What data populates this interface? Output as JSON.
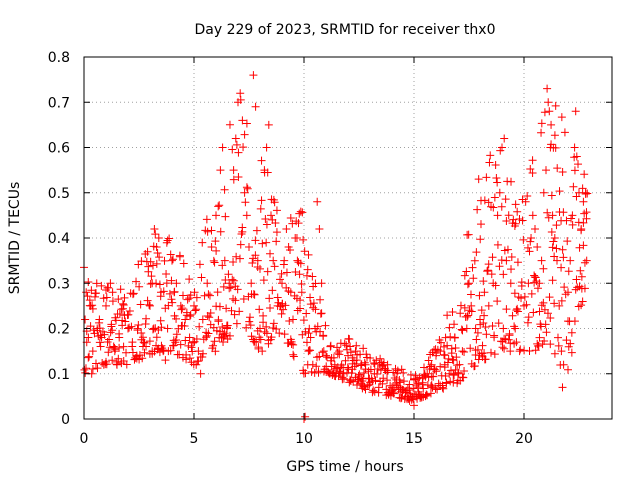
{
  "chart_data": {
    "type": "scatter",
    "title": "Day 229 of 2023, SRMTID for receiver thx0",
    "xlabel": "GPS time / hours",
    "ylabel": "SRMTID / TECUs",
    "xlim": [
      0,
      24
    ],
    "ylim": [
      0,
      0.8
    ],
    "xticks": [
      0,
      5,
      10,
      15,
      20
    ],
    "xtick_labels": [
      "0",
      "5",
      "10",
      "15",
      "20"
    ],
    "yticks": [
      0,
      0.1,
      0.2,
      0.3,
      0.4,
      0.5,
      0.6,
      0.7,
      0.8
    ],
    "ytick_labels": [
      "0",
      "0.1",
      "0.2",
      "0.3",
      "0.4",
      "0.5",
      "0.6",
      "0.7",
      "0.8"
    ],
    "grid": true,
    "marker": "plus",
    "series_color": "#ff0000",
    "envelope": {
      "description": "approximate lower/upper band of the dense point cloud (data units)",
      "hours": [
        0,
        1,
        2,
        3,
        4,
        5,
        6,
        7,
        8,
        9,
        10,
        11,
        12,
        13,
        14,
        15,
        16,
        17,
        18,
        19,
        20,
        21,
        22,
        23
      ],
      "lower": [
        0.1,
        0.12,
        0.12,
        0.14,
        0.15,
        0.12,
        0.15,
        0.2,
        0.15,
        0.18,
        0.1,
        0.1,
        0.08,
        0.06,
        0.05,
        0.04,
        0.06,
        0.08,
        0.12,
        0.15,
        0.15,
        0.15,
        0.1,
        0.34
      ],
      "upper": [
        0.34,
        0.3,
        0.28,
        0.43,
        0.4,
        0.3,
        0.55,
        0.72,
        0.62,
        0.45,
        0.48,
        0.2,
        0.18,
        0.15,
        0.12,
        0.1,
        0.16,
        0.32,
        0.55,
        0.62,
        0.5,
        0.73,
        0.68,
        0.5
      ]
    },
    "points": [
      [
        0.0,
        0.335
      ],
      [
        0.05,
        0.22
      ],
      [
        0.1,
        0.28
      ],
      [
        0.2,
        0.18
      ],
      [
        0.3,
        0.25
      ],
      [
        0.35,
        0.1
      ],
      [
        0.4,
        0.15
      ],
      [
        0.5,
        0.27
      ],
      [
        0.6,
        0.2
      ],
      [
        0.7,
        0.22
      ],
      [
        0.8,
        0.18
      ],
      [
        0.9,
        0.12
      ],
      [
        1.0,
        0.25
      ],
      [
        1.1,
        0.29
      ],
      [
        1.2,
        0.3
      ],
      [
        1.3,
        0.28
      ],
      [
        1.4,
        0.15
      ],
      [
        1.5,
        0.12
      ],
      [
        1.6,
        0.18
      ],
      [
        1.8,
        0.16
      ],
      [
        2.0,
        0.2
      ],
      [
        2.2,
        0.17
      ],
      [
        2.4,
        0.14
      ],
      [
        2.6,
        0.19
      ],
      [
        2.8,
        0.21
      ],
      [
        3.0,
        0.25
      ],
      [
        3.1,
        0.3
      ],
      [
        3.2,
        0.42
      ],
      [
        3.3,
        0.38
      ],
      [
        3.4,
        0.4
      ],
      [
        3.5,
        0.28
      ],
      [
        3.6,
        0.15
      ],
      [
        3.7,
        0.13
      ],
      [
        3.8,
        0.2
      ],
      [
        4.0,
        0.35
      ],
      [
        4.1,
        0.28
      ],
      [
        4.2,
        0.3
      ],
      [
        4.4,
        0.25
      ],
      [
        4.6,
        0.22
      ],
      [
        4.8,
        0.18
      ],
      [
        5.0,
        0.25
      ],
      [
        5.1,
        0.12
      ],
      [
        5.2,
        0.15
      ],
      [
        5.3,
        0.1
      ],
      [
        5.4,
        0.22
      ],
      [
        5.6,
        0.3
      ],
      [
        5.8,
        0.38
      ],
      [
        6.0,
        0.45
      ],
      [
        6.1,
        0.47
      ],
      [
        6.2,
        0.55
      ],
      [
        6.3,
        0.6
      ],
      [
        6.4,
        0.35
      ],
      [
        6.5,
        0.2
      ],
      [
        6.6,
        0.3
      ],
      [
        6.8,
        0.55
      ],
      [
        6.9,
        0.62
      ],
      [
        7.0,
        0.7
      ],
      [
        7.1,
        0.72
      ],
      [
        7.2,
        0.66
      ],
      [
        7.3,
        0.5
      ],
      [
        7.4,
        0.45
      ],
      [
        7.5,
        0.38
      ],
      [
        7.6,
        0.3
      ],
      [
        7.7,
        0.76
      ],
      [
        7.8,
        0.69
      ],
      [
        7.9,
        0.35
      ],
      [
        8.0,
        0.2
      ],
      [
        8.1,
        0.15
      ],
      [
        8.2,
        0.55
      ],
      [
        8.3,
        0.6
      ],
      [
        8.4,
        0.65
      ],
      [
        8.5,
        0.45
      ],
      [
        8.6,
        0.35
      ],
      [
        8.8,
        0.25
      ],
      [
        9.0,
        0.3
      ],
      [
        9.1,
        0.35
      ],
      [
        9.2,
        0.42
      ],
      [
        9.3,
        0.38
      ],
      [
        9.4,
        0.28
      ],
      [
        9.5,
        0.22
      ],
      [
        9.6,
        0.4
      ],
      [
        9.7,
        0.35
      ],
      [
        9.8,
        0.32
      ],
      [
        9.9,
        0.28
      ],
      [
        10.0,
        0.0
      ],
      [
        10.05,
        0.005
      ],
      [
        10.2,
        0.15
      ],
      [
        10.3,
        0.18
      ],
      [
        10.4,
        0.12
      ],
      [
        10.5,
        0.2
      ],
      [
        10.6,
        0.48
      ],
      [
        10.7,
        0.42
      ],
      [
        10.8,
        0.3
      ],
      [
        10.9,
        0.15
      ],
      [
        11.0,
        0.14
      ],
      [
        11.2,
        0.16
      ],
      [
        11.4,
        0.12
      ],
      [
        11.6,
        0.15
      ],
      [
        11.8,
        0.1
      ],
      [
        12.0,
        0.14
      ],
      [
        12.2,
        0.11
      ],
      [
        12.4,
        0.13
      ],
      [
        12.6,
        0.09
      ],
      [
        12.8,
        0.12
      ],
      [
        13.0,
        0.08
      ],
      [
        13.2,
        0.1
      ],
      [
        13.4,
        0.07
      ],
      [
        13.6,
        0.09
      ],
      [
        13.8,
        0.12
      ],
      [
        14.0,
        0.07
      ],
      [
        14.2,
        0.08
      ],
      [
        14.4,
        0.06
      ],
      [
        14.6,
        0.05
      ],
      [
        14.8,
        0.04
      ],
      [
        15.0,
        0.03
      ],
      [
        15.1,
        0.05
      ],
      [
        15.2,
        0.06
      ],
      [
        15.4,
        0.08
      ],
      [
        15.6,
        0.1
      ],
      [
        15.8,
        0.12
      ],
      [
        16.0,
        0.14
      ],
      [
        16.2,
        0.15
      ],
      [
        16.4,
        0.12
      ],
      [
        16.6,
        0.1
      ],
      [
        16.8,
        0.13
      ],
      [
        17.0,
        0.1
      ],
      [
        17.2,
        0.15
      ],
      [
        17.4,
        0.2
      ],
      [
        17.5,
        0.3
      ],
      [
        17.6,
        0.25
      ],
      [
        17.8,
        0.2
      ],
      [
        18.0,
        0.22
      ],
      [
        18.2,
        0.28
      ],
      [
        18.4,
        0.25
      ],
      [
        18.6,
        0.3
      ],
      [
        18.8,
        0.45
      ],
      [
        18.9,
        0.5
      ],
      [
        19.0,
        0.6
      ],
      [
        19.1,
        0.62
      ],
      [
        19.2,
        0.35
      ],
      [
        19.4,
        0.3
      ],
      [
        19.6,
        0.2
      ],
      [
        19.8,
        0.15
      ],
      [
        20.0,
        0.25
      ],
      [
        20.2,
        0.3
      ],
      [
        20.4,
        0.45
      ],
      [
        20.5,
        0.42
      ],
      [
        20.6,
        0.38
      ],
      [
        20.7,
        0.3
      ],
      [
        20.8,
        0.35
      ],
      [
        20.9,
        0.5
      ],
      [
        21.0,
        0.55
      ],
      [
        21.05,
        0.73
      ],
      [
        21.1,
        0.7
      ],
      [
        21.15,
        0.68
      ],
      [
        21.2,
        0.6
      ],
      [
        21.3,
        0.45
      ],
      [
        21.4,
        0.4
      ],
      [
        21.5,
        0.35
      ],
      [
        21.6,
        0.25
      ],
      [
        21.7,
        0.15
      ],
      [
        21.75,
        0.07
      ],
      [
        21.8,
        0.12
      ],
      [
        22.0,
        0.28
      ],
      [
        22.1,
        0.35
      ],
      [
        22.2,
        0.45
      ],
      [
        22.3,
        0.6
      ],
      [
        22.35,
        0.68
      ],
      [
        22.4,
        0.58
      ],
      [
        22.5,
        0.5
      ],
      [
        22.6,
        0.42
      ],
      [
        22.7,
        0.48
      ],
      [
        22.8,
        0.5
      ],
      [
        22.85,
        0.35
      ]
    ]
  }
}
